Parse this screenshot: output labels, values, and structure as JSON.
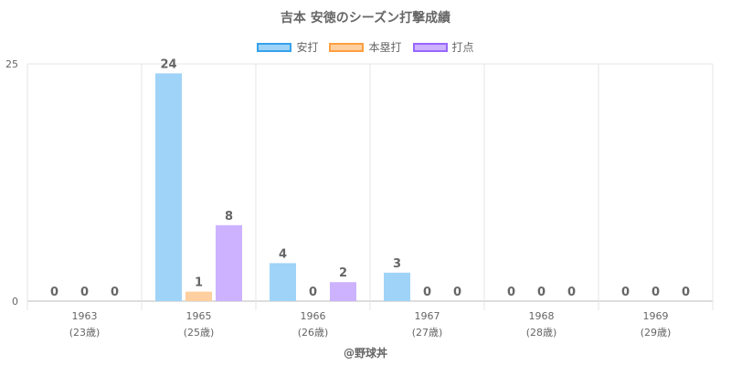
{
  "chart_data": {
    "type": "bar",
    "title": "吉本 安徳のシーズン打撃成績",
    "categories": [
      "1963",
      "1965",
      "1966",
      "1967",
      "1968",
      "1969"
    ],
    "sublabels": [
      "(23歳)",
      "(25歳)",
      "(26歳)",
      "(27歳)",
      "(28歳)",
      "(29歳)"
    ],
    "series": [
      {
        "name": "安打",
        "values": [
          0,
          24,
          4,
          3,
          0,
          0
        ],
        "color": "#9fd3f7",
        "border": "#36a2eb"
      },
      {
        "name": "本塁打",
        "values": [
          0,
          1,
          0,
          0,
          0,
          0
        ],
        "color": "#ffcf9f",
        "border": "#ff9f40"
      },
      {
        "name": "打点",
        "values": [
          0,
          8,
          2,
          0,
          0,
          0
        ],
        "color": "#ccb2ff",
        "border": "#9966ff"
      }
    ],
    "ylim": [
      0,
      25
    ],
    "yticks": [
      0,
      25
    ],
    "grid": true,
    "legend": "top"
  },
  "credit": "@野球丼"
}
